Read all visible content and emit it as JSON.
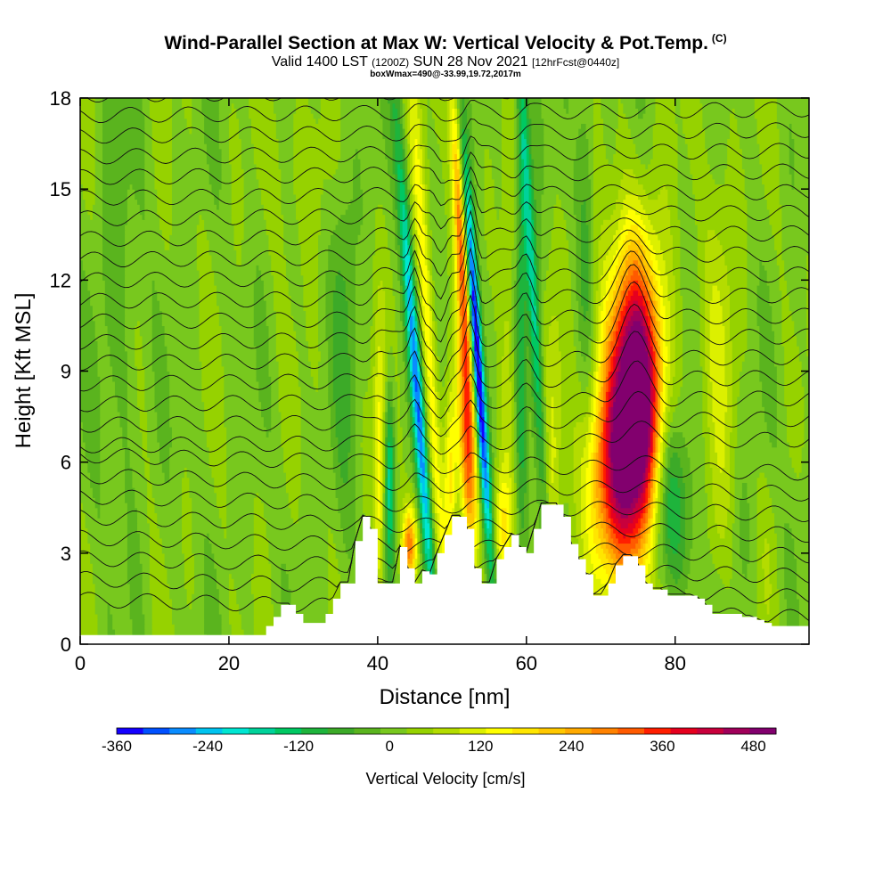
{
  "header": {
    "title": "Wind-Parallel Section at Max W: Vertical Velocity & Pot.Temp.",
    "copyright": "(C)",
    "valid_prefix": "Valid 1400 LST",
    "valid_utc": "(1200Z)",
    "valid_date": "SUN 28 Nov 2021",
    "forecast": "[12hrFcst@0440z]",
    "box_info": "boxWmax=490@-33.99,19.72,2017m"
  },
  "chart_data": {
    "type": "heatmap",
    "xlabel": "Distance [nm]",
    "ylabel": "Height [Kft MSL]",
    "xlim": [
      0,
      98
    ],
    "ylim": [
      0,
      18
    ],
    "x_ticks": [
      "0",
      "20",
      "40",
      "60",
      "80"
    ],
    "y_ticks": [
      "0",
      "3",
      "6",
      "9",
      "12",
      "15",
      "18"
    ],
    "colorbar": {
      "title": "Vertical Velocity [cm/s]",
      "tick_labels": [
        "-360",
        "-240",
        "-120",
        "0",
        "120",
        "240",
        "360",
        "480"
      ],
      "levels": [
        -360,
        -330,
        -300,
        -270,
        -240,
        -210,
        -180,
        -150,
        -120,
        -90,
        -60,
        -30,
        0,
        30,
        60,
        90,
        120,
        150,
        180,
        210,
        240,
        270,
        300,
        330,
        360,
        390,
        420,
        450,
        480,
        510
      ],
      "colors": [
        "#1400ff",
        "#0050ff",
        "#0a8cff",
        "#00c4f0",
        "#00e6d2",
        "#00d29a",
        "#00c862",
        "#1eb43c",
        "#3caa28",
        "#5ab41e",
        "#78c81e",
        "#96d200",
        "#b4dc00",
        "#dcf000",
        "#ffff00",
        "#ffe600",
        "#ffc800",
        "#ffaa00",
        "#ff8200",
        "#ff5a00",
        "#ff1e00",
        "#e6001e",
        "#c8003c",
        "#a0005a",
        "#82006e"
      ]
    },
    "terrain_kft": {
      "x": [
        0,
        24,
        25,
        26,
        27,
        28,
        29,
        30,
        31,
        33,
        34,
        35,
        36,
        37,
        38,
        39,
        40,
        41,
        42,
        43,
        44,
        45,
        46,
        47,
        48,
        49,
        50,
        51,
        52,
        53,
        54,
        55,
        56,
        57,
        58,
        59,
        60,
        61,
        62,
        63,
        64,
        65,
        66,
        67,
        68,
        69,
        70,
        71,
        72,
        73,
        74,
        75,
        76,
        77,
        78,
        79,
        80,
        81,
        82,
        83,
        84,
        85,
        86,
        87,
        88,
        89,
        90,
        91,
        92,
        93,
        94,
        95,
        96,
        97,
        98
      ],
      "h": [
        0.3,
        0.3,
        0.6,
        0.9,
        1.3,
        1.3,
        1.0,
        0.7,
        0.7,
        1.0,
        1.5,
        2.0,
        2.0,
        3.4,
        4.2,
        3.8,
        2.0,
        2.0,
        2.0,
        3.2,
        2.5,
        2.0,
        2.4,
        2.3,
        3.0,
        3.6,
        4.2,
        4.2,
        3.8,
        2.5,
        2.0,
        2.0,
        2.8,
        3.2,
        3.6,
        3.2,
        3.0,
        3.8,
        4.6,
        4.6,
        4.6,
        4.2,
        3.3,
        2.8,
        2.3,
        1.6,
        1.6,
        2.0,
        2.6,
        2.9,
        2.9,
        2.6,
        2.0,
        1.8,
        1.8,
        1.6,
        1.6,
        1.6,
        1.6,
        1.5,
        1.3,
        1.0,
        1.0,
        1.0,
        1.0,
        0.9,
        0.9,
        0.8,
        0.7,
        0.6,
        0.6,
        0.6,
        0.6,
        0.6,
        0.6
      ]
    },
    "vertical_velocity_features": [
      {
        "kind": "updraft",
        "x_nm": 74.5,
        "height_kft": 7.5,
        "peak_cms": 490
      },
      {
        "kind": "updraft_band",
        "x_nm": 52,
        "top_kft": 17.5,
        "bottom_kft": 4.0,
        "peak_cms": 260
      },
      {
        "kind": "downdraft_band",
        "x_nm": 52.8,
        "top_kft": 18,
        "bottom_kft": 3.5,
        "peak_cms": -330
      },
      {
        "kind": "downdraft_band",
        "x_nm": 44.5,
        "top_kft": 18,
        "bottom_kft": 3.5,
        "peak_cms": -220
      },
      {
        "kind": "downdraft_band",
        "x_nm": 61,
        "top_kft": 18,
        "bottom_kft": 4.5,
        "peak_cms": -160
      },
      {
        "kind": "updraft_band",
        "x_nm": 46.5,
        "top_kft": 17,
        "bottom_kft": 3.0,
        "peak_cms": 120
      },
      {
        "kind": "updraft",
        "x_nm": 44.5,
        "height_kft": 3.5,
        "peak_cms": 240
      }
    ],
    "potential_temperature_isentropes_count": 26
  }
}
